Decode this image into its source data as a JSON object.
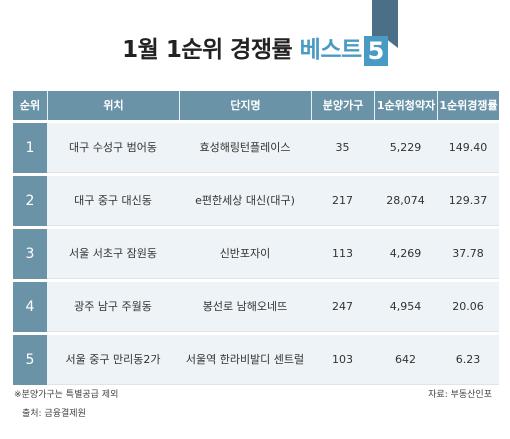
{
  "title": {
    "main": "1월 1순위 경쟁률",
    "accent": "베스트",
    "number": "5"
  },
  "colors": {
    "accent": "#4a9bc3",
    "header": "#6a93a8",
    "row_bg": "#edf3f6",
    "ribbon": "#4a6f86"
  },
  "table": {
    "headers": [
      "순위",
      "위치",
      "단지명",
      "분양가구",
      "1순위청약자",
      "1순위경쟁률"
    ],
    "rows": [
      {
        "rank": "1",
        "location": "대구 수성구 범어동",
        "complex": "효성해링턴플레이스",
        "units": "35",
        "applicants": "5,229",
        "ratio": "149.40"
      },
      {
        "rank": "2",
        "location": "대구 중구 대신동",
        "complex": "e편한세상 대신(대구)",
        "units": "217",
        "applicants": "28,074",
        "ratio": "129.37"
      },
      {
        "rank": "3",
        "location": "서울 서초구 잠원동",
        "complex": "신반포자이",
        "units": "113",
        "applicants": "4,269",
        "ratio": "37.78"
      },
      {
        "rank": "4",
        "location": "광주 남구 주월동",
        "complex": "봉선로 남해오네뜨",
        "units": "247",
        "applicants": "4,954",
        "ratio": "20.06"
      },
      {
        "rank": "5",
        "location": "서울 중구 만리동2가",
        "complex": "서울역 한라비발디 센트럴",
        "units": "103",
        "applicants": "642",
        "ratio": "6.23"
      }
    ]
  },
  "footer": {
    "note": "※분양가구는 특별공급 제외",
    "source": "출처: 금융결제원",
    "credit": "자료: 부동산인포"
  }
}
